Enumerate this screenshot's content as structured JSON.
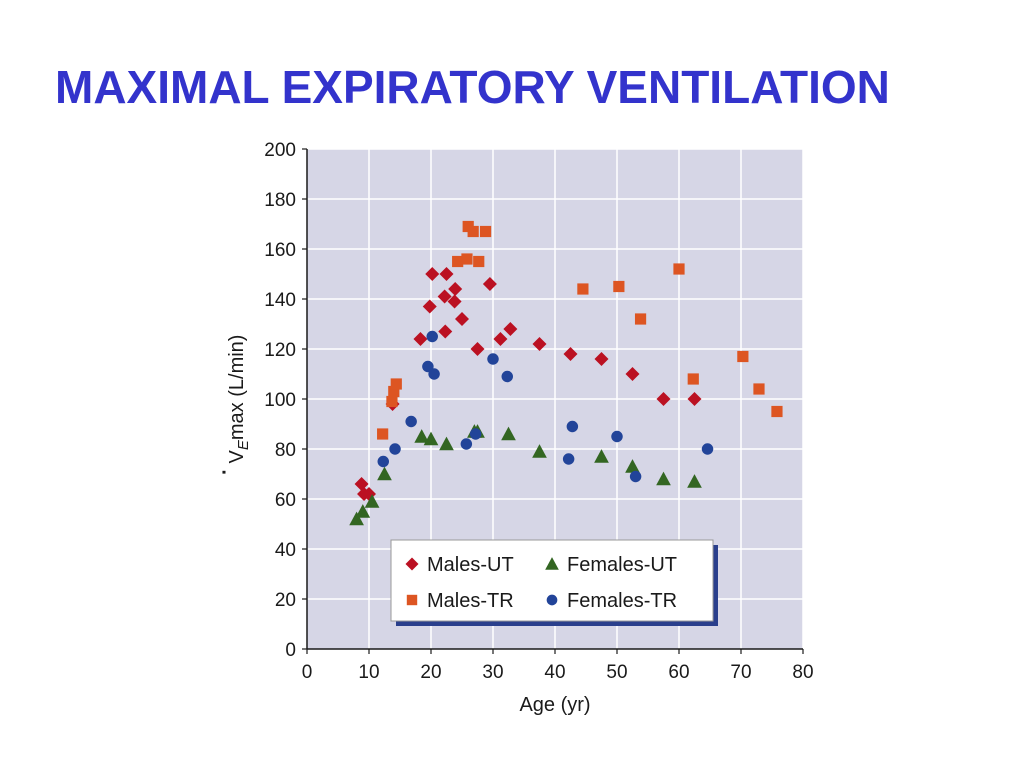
{
  "slide": {
    "title": "MAXIMAL EXPIRATORY VENTILATION"
  },
  "chart_data": {
    "type": "scatter",
    "xlabel": "Age (yr)",
    "ylabel": "V̇Emax (L/min)",
    "ylabel_parts": {
      "v": "V",
      "dot": "·",
      "sub": "E",
      "rest": "max (L/min)"
    },
    "xlim": [
      0,
      80
    ],
    "ylim": [
      0,
      200
    ],
    "x_ticks": [
      0,
      10,
      20,
      30,
      40,
      50,
      60,
      70,
      80
    ],
    "y_ticks": [
      0,
      20,
      40,
      60,
      80,
      100,
      120,
      140,
      160,
      180,
      200
    ],
    "grid": true,
    "legend_position": "bottom-center",
    "series": [
      {
        "name": "Males-UT",
        "marker": "diamond",
        "color": "#bb1122",
        "points": [
          [
            8.8,
            66
          ],
          [
            9.2,
            62
          ],
          [
            10,
            62
          ],
          [
            13.8,
            98
          ],
          [
            18.3,
            124
          ],
          [
            19.8,
            137
          ],
          [
            20.2,
            150
          ],
          [
            22.2,
            141
          ],
          [
            22.3,
            127
          ],
          [
            22.5,
            150
          ],
          [
            23.8,
            139
          ],
          [
            23.9,
            144
          ],
          [
            25,
            132
          ],
          [
            27.5,
            120
          ],
          [
            29.5,
            146
          ],
          [
            31.2,
            124
          ],
          [
            32.8,
            128
          ],
          [
            37.5,
            122
          ],
          [
            42.5,
            118
          ],
          [
            47.5,
            116
          ],
          [
            52.5,
            110
          ],
          [
            57.5,
            100
          ],
          [
            62.5,
            100
          ]
        ]
      },
      {
        "name": "Females-UT",
        "marker": "triangle",
        "color": "#336622",
        "points": [
          [
            8,
            52
          ],
          [
            9,
            55
          ],
          [
            10.5,
            59
          ],
          [
            12.5,
            70
          ],
          [
            18.5,
            85
          ],
          [
            20,
            84
          ],
          [
            22.5,
            82
          ],
          [
            27,
            87
          ],
          [
            27.5,
            87
          ],
          [
            32.5,
            86
          ],
          [
            37.5,
            79
          ],
          [
            47.5,
            77
          ],
          [
            52.5,
            73
          ],
          [
            57.5,
            68
          ],
          [
            62.5,
            67
          ]
        ]
      },
      {
        "name": "Males-TR",
        "marker": "square",
        "color": "#dd5522",
        "points": [
          [
            12.2,
            86
          ],
          [
            13.7,
            99
          ],
          [
            14,
            103
          ],
          [
            14.4,
            106
          ],
          [
            24.3,
            155
          ],
          [
            25.8,
            156
          ],
          [
            26,
            169
          ],
          [
            26.8,
            167
          ],
          [
            27.7,
            155
          ],
          [
            28.8,
            167
          ],
          [
            44.5,
            144
          ],
          [
            50.3,
            145
          ],
          [
            53.8,
            132
          ],
          [
            60,
            152
          ],
          [
            70.3,
            117
          ],
          [
            62.3,
            108
          ],
          [
            72.9,
            104
          ],
          [
            75.8,
            95
          ]
        ]
      },
      {
        "name": "Females-TR",
        "marker": "circle",
        "color": "#224499",
        "points": [
          [
            12.3,
            75
          ],
          [
            14.2,
            80
          ],
          [
            16.8,
            91
          ],
          [
            19.5,
            113
          ],
          [
            20.2,
            125
          ],
          [
            20.5,
            110
          ],
          [
            25.7,
            82
          ],
          [
            27.2,
            86
          ],
          [
            30,
            116
          ],
          [
            32.3,
            109
          ],
          [
            42.2,
            76
          ],
          [
            42.8,
            89
          ],
          [
            50,
            85
          ],
          [
            53,
            69
          ],
          [
            64.6,
            80
          ]
        ]
      }
    ]
  }
}
